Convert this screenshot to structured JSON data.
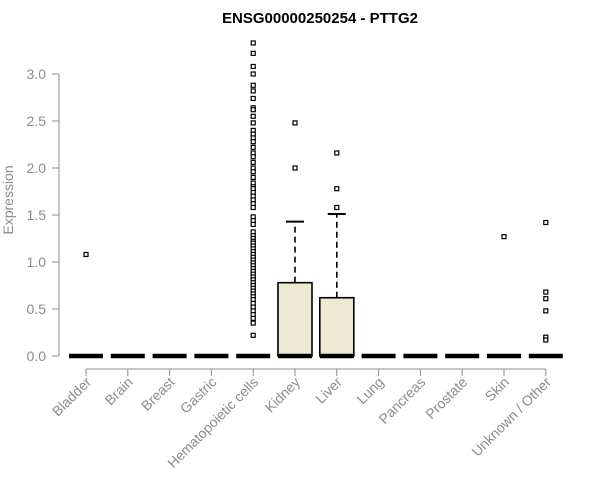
{
  "chart_data": {
    "type": "box",
    "title": "ENSG00000250254 - PTTG2",
    "xlabel": "",
    "ylabel": "Expression",
    "ylim": [
      0,
      3.1
    ],
    "yticks": [
      "0.0",
      "0.5",
      "1.0",
      "1.5",
      "2.0",
      "2.5",
      "3.0"
    ],
    "categories": [
      "Bladder",
      "Brain",
      "Breast",
      "Gastric",
      "Hematopoietic cells",
      "Kidney",
      "Liver",
      "Lung",
      "Pancreas",
      "Prostate",
      "Skin",
      "Unknown / Other"
    ],
    "box_fill": "#efe9d3",
    "boxes": [
      {
        "q1": 0,
        "median": 0,
        "q3": 0,
        "whisker_low": 0,
        "whisker_high": 0,
        "outliers": [
          1.08
        ]
      },
      {
        "q1": 0,
        "median": 0,
        "q3": 0,
        "whisker_low": 0,
        "whisker_high": 0,
        "outliers": []
      },
      {
        "q1": 0,
        "median": 0,
        "q3": 0,
        "whisker_low": 0,
        "whisker_high": 0,
        "outliers": []
      },
      {
        "q1": 0,
        "median": 0,
        "q3": 0,
        "whisker_low": 0,
        "whisker_high": 0,
        "outliers": []
      },
      {
        "q1": 0,
        "median": 0,
        "q3": 0,
        "whisker_low": 0,
        "whisker_high": 0,
        "outliers": [
          3.33,
          3.22,
          3.08,
          3.0,
          2.88,
          2.82,
          2.74,
          2.64,
          2.62,
          2.55,
          2.48,
          2.4,
          2.36,
          2.32,
          2.28,
          2.22,
          2.16,
          2.12,
          2.06,
          2.0,
          1.96,
          1.9,
          1.84,
          1.8,
          1.78,
          1.74,
          1.7,
          1.66,
          1.62,
          1.58,
          1.48,
          1.44,
          1.4,
          1.32,
          1.28,
          1.25,
          1.22,
          1.2,
          1.17,
          1.14,
          1.11,
          1.08,
          1.05,
          1.02,
          0.99,
          0.96,
          0.93,
          0.9,
          0.87,
          0.84,
          0.81,
          0.78,
          0.75,
          0.72,
          0.69,
          0.66,
          0.63,
          0.6,
          0.56,
          0.52,
          0.48,
          0.44,
          0.4,
          0.35,
          0.22
        ]
      },
      {
        "q1": 0,
        "median": 0,
        "q3": 0.78,
        "whisker_low": 0,
        "whisker_high": 1.43,
        "outliers": [
          2.48,
          2.0
        ]
      },
      {
        "q1": 0,
        "median": 0,
        "q3": 0.62,
        "whisker_low": 0,
        "whisker_high": 1.51,
        "outliers": [
          2.16,
          1.78,
          1.58
        ]
      },
      {
        "q1": 0,
        "median": 0,
        "q3": 0,
        "whisker_low": 0,
        "whisker_high": 0,
        "outliers": []
      },
      {
        "q1": 0,
        "median": 0,
        "q3": 0,
        "whisker_low": 0,
        "whisker_high": 0,
        "outliers": []
      },
      {
        "q1": 0,
        "median": 0,
        "q3": 0,
        "whisker_low": 0,
        "whisker_high": 0,
        "outliers": []
      },
      {
        "q1": 0,
        "median": 0,
        "q3": 0,
        "whisker_low": 0,
        "whisker_high": 0,
        "outliers": [
          1.27
        ]
      },
      {
        "q1": 0,
        "median": 0,
        "q3": 0,
        "whisker_low": 0,
        "whisker_high": 0,
        "outliers": [
          1.42,
          0.68,
          0.61,
          0.48,
          0.2,
          0.17
        ]
      }
    ]
  }
}
